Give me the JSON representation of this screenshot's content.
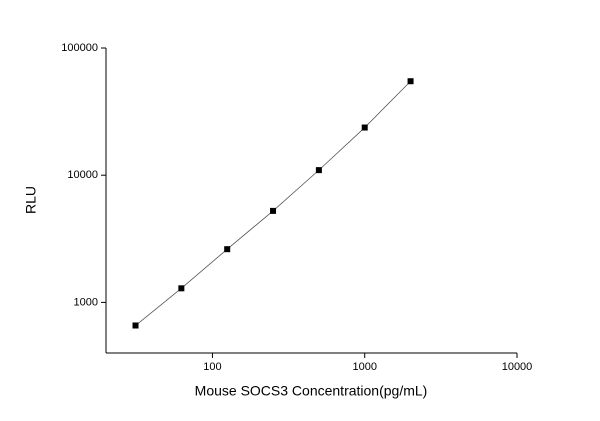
{
  "chart_data": {
    "type": "scatter",
    "x_label": "Mouse SOCS3 Concentration(pg/mL)",
    "y_label": "RLU",
    "x": [
      31.25,
      62.5,
      125,
      250,
      500,
      1000,
      2000
    ],
    "series": [
      {
        "color": "#000000",
        "values": [
          658,
          1290,
          2620,
          5240,
          10960,
          23700,
          54800
        ]
      }
    ],
    "xlim": [
      20,
      10000
    ],
    "ylim": [
      400,
      100000
    ],
    "xticks": [
      100,
      1000,
      10000
    ],
    "yticks": [
      1000,
      10000,
      100000
    ],
    "x_log": true,
    "y_log": true,
    "fit_line": true
  }
}
